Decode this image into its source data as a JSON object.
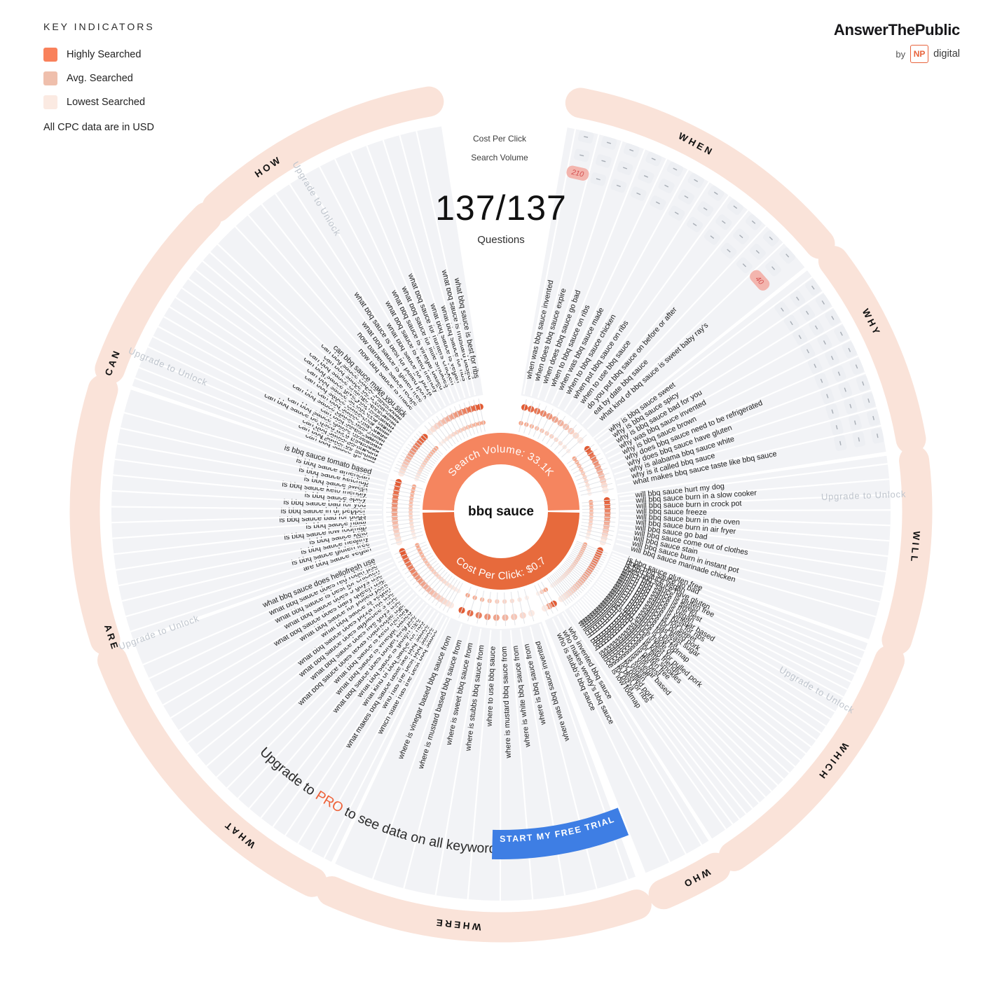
{
  "legend": {
    "title": "KEY INDICATORS",
    "items": [
      {
        "label": "Highly Searched",
        "color": "#F9815B"
      },
      {
        "label": "Avg. Searched",
        "color": "#EFBFAC"
      },
      {
        "label": "Lowest Searched",
        "color": "#FBEAE2"
      }
    ],
    "note": "All CPC data are in USD"
  },
  "logo": {
    "brand": "AnswerThePublic",
    "by": "by",
    "np": "NP",
    "digital": "digital"
  },
  "header": {
    "cpc_ring_label": "Cost Per Click",
    "sv_ring_label": "Search Volume",
    "count": "137/137",
    "count_sub": "Questions"
  },
  "center": {
    "keyword": "bbq sauce",
    "search_volume_text": "Search Volume: 33.1K",
    "cpc_text": "Cost Per Click: $0.7"
  },
  "unlock_text": "Upgrade to Unlock",
  "upgrade_banner": {
    "prefix": "Upgrade to ",
    "pro": "PRO",
    "suffix": " to see data on all keywords",
    "button": "START MY FREE TRIAL"
  },
  "colors": {
    "accent": "#EE6239",
    "band": "#FAE3D9",
    "fan": "#F2F3F6",
    "donut_top": "#F5855F",
    "donut_bottom": "#E76A3C",
    "button_blue": "#3E7EE4",
    "badge_bg": "#F3B5AE",
    "badge_text": "#D44F4F",
    "unlock_gray": "#BFC5CD",
    "dash": "#A7ADB5",
    "cell_bg": "#EDEFF3",
    "dot_dark": "#E25B33",
    "dot_light": "#FCEAE3",
    "question_text": "#1D1D1D"
  },
  "chart_data": {
    "type": "table",
    "title": "AnswerThePublic question wheel",
    "keyword": "bbq sauce",
    "totals": {
      "questions_shown": "137/137",
      "search_volume": "33.1K",
      "cost_per_click": "$0.7"
    },
    "known_values": [
      {
        "question": "when was bbq sauce invented",
        "search_volume": "210"
      },
      {
        "question": "what kind of bbq sauce is sweet baby ray's",
        "search_volume": "40"
      }
    ],
    "badges": [
      {
        "segment": "WHEN",
        "index": 0,
        "value": "210"
      },
      {
        "segment": "WHEN",
        "index": 10,
        "value": "40"
      }
    ],
    "segments": [
      {
        "label": "WHEN",
        "start": 11,
        "end": 50,
        "label_angle": 28,
        "cells": true,
        "locked": false,
        "questions": [
          "when was bbq sauce invented",
          "when does bbq sauce expire",
          "when does bbq sauce go bad",
          "when to bbq sauce on ribs",
          "when was bbq sauce made",
          "when to bbq sauce chicken",
          "when put bbq sauce on ribs",
          "when to use bbq sauce",
          "do you put bbq sauce on before or after",
          "eat by date bbq sauce",
          "what kind of bbq sauce is sweet baby ray's"
        ]
      },
      {
        "label": "WHY",
        "start": 53,
        "end": 80,
        "label_angle": 63,
        "cells": true,
        "locked": false,
        "questions": [
          "why is bbq sauce sweet",
          "why is bbq sauce spicy",
          "why is bbq sauce bad for you",
          "why was bbq sauce invented",
          "why is bbq sauce brown",
          "why does bbq sauce need to be refrigerated",
          "why does bbq sauce have gluten",
          "why is alabama bbq sauce white",
          "why is it called bbq sauce",
          "what makes bbq sauce taste like bbq sauce"
        ]
      },
      {
        "label": "WILL",
        "start": 83,
        "end": 108,
        "label_angle": 95,
        "cells": false,
        "locked": true,
        "unlock_angle": 88,
        "questions": [
          "will bbq sauce hurt my dog",
          "will bbq sauce burn in a slow cooker",
          "will bbq sauce burn in crock pot",
          "will bbq sauce freeze",
          "will bbq sauce burn in the oven",
          "will bbq sauce burn in air fryer",
          "will bbq sauce go bad",
          "will bbq sauce come out of clothes",
          "will bbq sauce stain",
          "will bbq sauce burn in instant pot",
          "will bbq sauce marinade chicken"
        ]
      },
      {
        "label": "WHICH",
        "start": 111,
        "end": 146,
        "label_angle": 127,
        "cells": false,
        "locked": true,
        "unlock_angle": 120,
        "questions": [
          "is bbq sauce gluten free",
          "does bbq sauce go bad",
          "is bbq sauce vegan",
          "does bbq sauce have gluten",
          "which bbq sauce is gluten free",
          "which bbq sauce is sweet",
          "which bbq sauce is the best",
          "which bbq sauce is vegan",
          "which bbq sauce is vinegar based",
          "which bbq sauce is best for ribs",
          "which bbq sauce is not sweet",
          "which bbq sauce for pulled pork",
          "which bbq sauce has least sugar",
          "which bbq sauce for pizza",
          "which bbq sauce is low fodmap",
          "what's bbq sauce made of",
          "which bbq sauce is best for pulled pork",
          "which bbq sauce is keto friendly",
          "which bbq sauce for little smokies",
          "which bbq sauce is gluten free",
          "which bbq sauce is the best",
          "which bbq sauce is vinegar based",
          "which bbq sauce is sweet",
          "which bbq sauce is vegan",
          "which bbq sauce for pulled pork",
          "which bbq sauce is best for ribs",
          "which bbq sauce for pizza",
          "which bbq sauce is low fodmap"
        ]
      },
      {
        "label": "WHO",
        "start": 149,
        "end": 157,
        "label_angle": 152,
        "cells": false,
        "locked": false,
        "questions": [
          "who invented bbq sauce",
          "who makes wendy's bbq sauce",
          "who is stubb's bbq sauce"
        ]
      },
      {
        "label": "WHERE",
        "start": 161,
        "end": 204,
        "label_angle": 186,
        "cells": false,
        "locked": false,
        "questions": [
          "where was bbq sauce invented",
          "where is bbq sauce from",
          "where is white bbq sauce from",
          "where is mustard bbq sauce from",
          "where to use bbq sauce",
          "where is stubbs bbq sauce from",
          "where is sweet bbq sauce from",
          "where is mustard based bbq sauce from",
          "where is vinegar based bbq sauce from"
        ]
      },
      {
        "label": "WHAT",
        "start": 207,
        "end": 249,
        "label_angle": 219,
        "cells": false,
        "locked": false,
        "questions": [
          "which state has the best bbq sauce",
          "who has the best bbq sauce",
          "what makes bbq sauce taste like bbq sauce",
          "what kind of bbq sauce for ribs",
          "what bbq sauce is gluten free",
          "what bbq sauce does burger king use",
          "what bbq sauce is vinegar based",
          "what bbq sauce is keto friendly",
          "what bbq sauce does texas roadhouse use",
          "what bbq sauce does five guys use",
          "what bbq sauce does applebee's use",
          "what bbq sauce does pizza hut use",
          "what bbq sauce is vegan",
          "what bbq sauce for pulled pork",
          "what bbq sauce does dairy queen use",
          "what bbq sauce does 5 guys use",
          "what bbq sauce is best for chicken",
          "what bbq sauce does red robin use",
          "what bbq sauce does hellofresh use"
        ]
      },
      {
        "label": "ARE",
        "start": 252,
        "end": 287,
        "label_angle": 252,
        "cells": false,
        "locked": true,
        "unlock_angle": 250,
        "questions": [
          "are bbq sauce vegan",
          "is bbq sauce gluten free",
          "is bbq sauce healthy",
          "is bbq sauce keto",
          "is bbq sauce low fodmap",
          "is bbq sauce halal",
          "is bbq sauce bad for dogs",
          "is bbq sauce in dr pepper",
          "is bbq sauce bad for you",
          "is bbq sauce spicy",
          "is bbq sauce keto friendly",
          "is bbq sauce sweet",
          "is bbq sauce ketchup",
          "is bbq sauce american",
          "is bbq sauce tomato based"
        ]
      },
      {
        "label": "CAN",
        "start": 290,
        "end": 315,
        "label_angle": 291,
        "cells": false,
        "locked": true,
        "unlock_angle": 293,
        "questions": [
          "can bbq sauce go bad",
          "can bbq sauce be left out",
          "can bbq sauce be frozen",
          "can bbq sauce be used as a marinade",
          "can bbq sauce cause heartburn",
          "can bbq sauce expire",
          "can bbq sauce cause acid reflux",
          "can bbq sauce hurt dogs",
          "can bbq sauce cause red stool",
          "can bbq sauce sit out overnight",
          "can bbq sauce give you heartburn",
          "can bbq sauce change stool color",
          "can bbq sauce be a marinade",
          "can bbq sauce cause black stool",
          "can bbq sauce make you sick"
        ]
      },
      {
        "label": "HOW",
        "start": 317,
        "end": 350,
        "label_angle": 326,
        "cells": false,
        "locked": true,
        "unlock_angle": 329,
        "questions": [
          "how bbq sauce is made",
          "how barbeque sauce recipe",
          "what bbq sauce is gluten free",
          "what bbq sauce is best for pulled pork",
          "what bbq sauce for pizza",
          "what bbq sauce is keto friendly",
          "what bbq sauce is vinegar based",
          "what bbq sauce for little smokies",
          "what bbq sauce for hunters chicken",
          "what bbq sauce is vegan",
          "what bbq sauce for ribs",
          "what bbq sauce is mustard based",
          "what bbq sauce is best for ribs"
        ]
      }
    ]
  }
}
